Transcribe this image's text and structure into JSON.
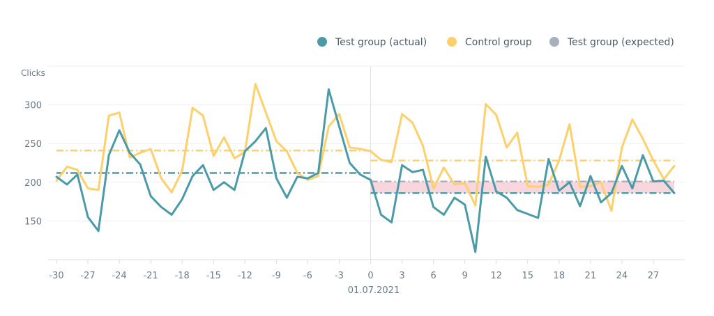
{
  "chart_data": {
    "type": "line",
    "ylabel": "Clicks",
    "xlabel": "",
    "x_range": [
      -30,
      29
    ],
    "ylim": [
      100,
      350
    ],
    "x_ticks": [
      "-30",
      "-27",
      "-24",
      "-21",
      "-18",
      "-15",
      "-12",
      "-9",
      "-6",
      "-3",
      "0",
      "3",
      "6",
      "9",
      "12",
      "15",
      "18",
      "21",
      "24",
      "27"
    ],
    "y_ticks": [
      "150",
      "200",
      "250",
      "300"
    ],
    "x_tick_values": [
      -30,
      -27,
      -24,
      -21,
      -18,
      -15,
      -12,
      -9,
      -6,
      -3,
      0,
      3,
      6,
      9,
      12,
      15,
      18,
      21,
      24,
      27
    ],
    "y_tick_values": [
      150,
      200,
      250,
      300
    ],
    "intervention_label": "01.07.2021",
    "intervention_x": 0,
    "grid": true,
    "legend_position": "top-right",
    "colors": {
      "actual": "#4a9aa8",
      "control": "#fdd06b",
      "expected": "#a8b0bc",
      "gap_band": "#f8d6de",
      "grid": "#eef0f3",
      "axis": "#d8dde3",
      "divider": "#dfe3e8"
    },
    "series": [
      {
        "key": "actual",
        "name": "Test group (actual)",
        "x": [
          -30,
          -29,
          -28,
          -27,
          -26,
          -25,
          -24,
          -23,
          -22,
          -21,
          -20,
          -19,
          -18,
          -17,
          -16,
          -15,
          -14,
          -13,
          -12,
          -11,
          -10,
          -9,
          -8,
          -7,
          -6,
          -5,
          -4,
          -3,
          -2,
          -1,
          0,
          1,
          2,
          3,
          4,
          5,
          6,
          7,
          8,
          9,
          10,
          11,
          12,
          13,
          14,
          15,
          16,
          17,
          18,
          19,
          20,
          21,
          22,
          23,
          24,
          25,
          26,
          27,
          28,
          29
        ],
        "values": [
          207,
          197,
          210,
          155,
          137,
          235,
          267,
          238,
          223,
          182,
          168,
          158,
          178,
          208,
          222,
          190,
          200,
          190,
          240,
          253,
          270,
          205,
          180,
          207,
          205,
          212,
          320,
          272,
          225,
          210,
          203,
          158,
          148,
          222,
          213,
          216,
          168,
          158,
          180,
          171,
          110,
          233,
          188,
          180,
          164,
          159,
          154,
          230,
          189,
          200,
          169,
          208,
          174,
          186,
          221,
          192,
          235,
          201,
          202,
          186
        ]
      },
      {
        "key": "control",
        "name": "Control group",
        "x": [
          -30,
          -29,
          -28,
          -27,
          -26,
          -25,
          -24,
          -23,
          -22,
          -21,
          -20,
          -19,
          -18,
          -17,
          -16,
          -15,
          -14,
          -13,
          -12,
          -11,
          -10,
          -9,
          -8,
          -7,
          -6,
          -5,
          -4,
          -3,
          -2,
          -1,
          0,
          1,
          2,
          3,
          4,
          5,
          6,
          7,
          8,
          9,
          10,
          11,
          12,
          13,
          14,
          15,
          16,
          17,
          18,
          19,
          20,
          21,
          22,
          23,
          24,
          25,
          26,
          27,
          28,
          29
        ],
        "values": [
          202,
          220,
          216,
          192,
          190,
          286,
          290,
          232,
          238,
          243,
          205,
          187,
          215,
          296,
          286,
          234,
          258,
          231,
          239,
          327,
          290,
          253,
          240,
          212,
          203,
          208,
          272,
          288,
          245,
          243,
          240,
          229,
          226,
          288,
          277,
          247,
          192,
          219,
          197,
          199,
          170,
          301,
          287,
          245,
          264,
          195,
          194,
          197,
          228,
          275,
          194,
          195,
          200,
          163,
          245,
          281,
          256,
          228,
          204,
          221
        ]
      },
      {
        "key": "expected",
        "name": "Test group (expected)",
        "x": [
          0,
          29
        ],
        "values": [
          201,
          201
        ]
      }
    ],
    "reference_lines": [
      {
        "key": "control_mean_pre",
        "color_key": "control",
        "x": [
          -30,
          0
        ],
        "y": 241
      },
      {
        "key": "actual_mean_pre",
        "color_key": "actual",
        "x": [
          -30,
          0
        ],
        "y": 212
      },
      {
        "key": "control_mean_post",
        "color_key": "control",
        "x": [
          0,
          29
        ],
        "y": 228
      },
      {
        "key": "expected_mean_post",
        "color_key": "expected",
        "x": [
          0,
          29
        ],
        "y": 201
      },
      {
        "key": "actual_mean_post",
        "color_key": "actual",
        "x": [
          0,
          29
        ],
        "y": 186
      }
    ],
    "gap_band": {
      "x": [
        0,
        29
      ],
      "y": [
        186,
        201
      ]
    }
  }
}
